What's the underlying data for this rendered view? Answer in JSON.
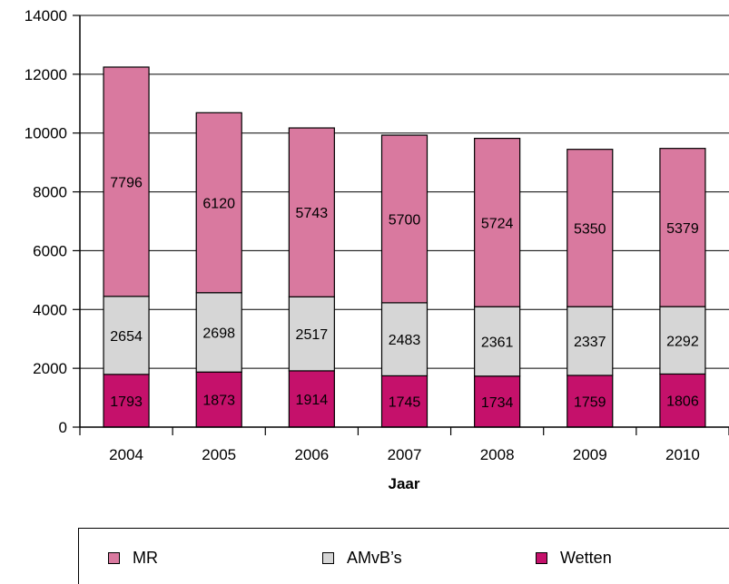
{
  "chart_data": {
    "type": "bar",
    "stacked": true,
    "categories": [
      "2004",
      "2005",
      "2006",
      "2007",
      "2008",
      "2009",
      "2010"
    ],
    "series": [
      {
        "name": "Wetten",
        "color": "#c5116b",
        "values": [
          1793,
          1873,
          1914,
          1745,
          1734,
          1759,
          1806
        ]
      },
      {
        "name": "AMvB's",
        "color": "#d6d6d6",
        "values": [
          2654,
          2698,
          2517,
          2483,
          2361,
          2337,
          2292
        ]
      },
      {
        "name": "MR",
        "color": "#d9799f",
        "values": [
          7796,
          6120,
          5743,
          5700,
          5724,
          5350,
          5379
        ]
      }
    ],
    "title": "",
    "xlabel": "Jaar",
    "ylabel": "",
    "ylim": [
      0,
      14000
    ],
    "yticks": [
      0,
      2000,
      4000,
      6000,
      8000,
      10000,
      12000,
      14000
    ],
    "grid": true,
    "legend_position": "bottom"
  },
  "legend": {
    "items": [
      {
        "label": "MR",
        "color": "#d9799f"
      },
      {
        "label": "AMvB’s",
        "color": "#d6d6d6"
      },
      {
        "label": "Wetten",
        "color": "#c5116b"
      }
    ]
  }
}
